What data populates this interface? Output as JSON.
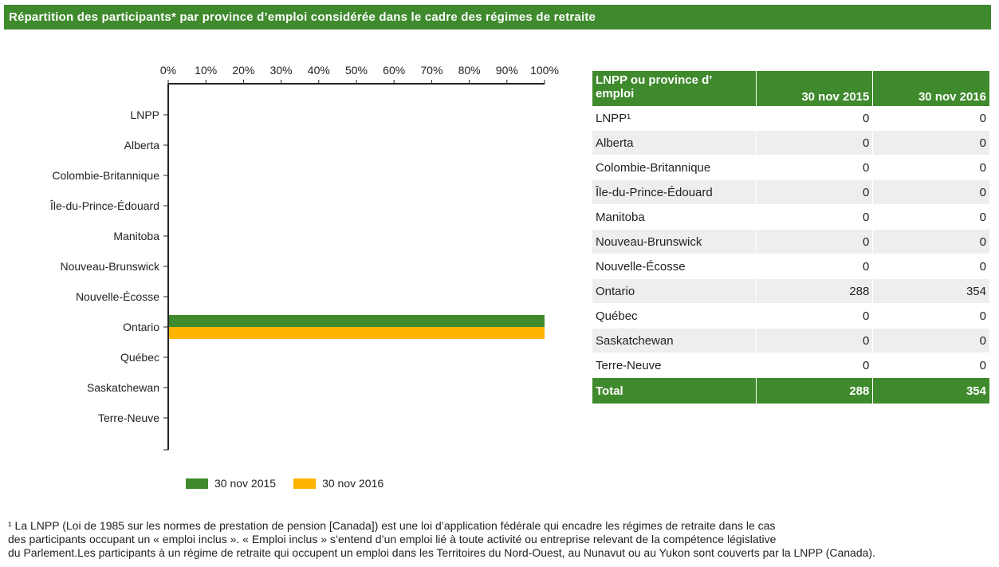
{
  "title": "Répartition des participants* par province d’emploi considérée dans le cadre des régimes de retraite",
  "colors": {
    "series_2015": "#3f8a2d",
    "series_2016": "#ffb400",
    "header_bg": "#3f8a2d"
  },
  "chart_data": {
    "type": "bar",
    "orientation": "horizontal",
    "categories": [
      "LNPP",
      "Alberta",
      "Colombie-Britannique",
      "Île-du-Prince-Édouard",
      "Manitoba",
      "Nouveau-Brunswick",
      "Nouvelle-Écosse",
      "Ontario",
      "Québec",
      "Saskatchewan",
      "Terre-Neuve"
    ],
    "series": [
      {
        "name": "30 nov 2015",
        "values": [
          0,
          0,
          0,
          0,
          0,
          0,
          0,
          100,
          0,
          0,
          0
        ]
      },
      {
        "name": "30 nov 2016",
        "values": [
          0,
          0,
          0,
          0,
          0,
          0,
          0,
          100,
          0,
          0,
          0
        ]
      }
    ],
    "xlim": [
      0,
      100
    ],
    "x_ticks": [
      "0%",
      "10%",
      "20%",
      "30%",
      "40%",
      "50%",
      "60%",
      "70%",
      "80%",
      "90%",
      "100%"
    ],
    "axis_position": "top",
    "grid": false,
    "legend_position": "bottom"
  },
  "table": {
    "headers": [
      "LNPP ou province d’ emploi",
      "30 nov 2015",
      "30 nov 2016"
    ],
    "rows": [
      [
        "LNPP¹",
        "0",
        "0"
      ],
      [
        "Alberta",
        "0",
        "0"
      ],
      [
        "Colombie-Britannique",
        "0",
        "0"
      ],
      [
        "Île-du-Prince-Édouard",
        "0",
        "0"
      ],
      [
        "Manitoba",
        "0",
        "0"
      ],
      [
        "Nouveau-Brunswick",
        "0",
        "0"
      ],
      [
        "Nouvelle-Écosse",
        "0",
        "0"
      ],
      [
        "Ontario",
        "288",
        "354"
      ],
      [
        "Québec",
        "0",
        "0"
      ],
      [
        "Saskatchewan",
        "0",
        "0"
      ],
      [
        "Terre-Neuve",
        "0",
        "0"
      ]
    ],
    "total": [
      "Total",
      "288",
      "354"
    ]
  },
  "footnote": "¹ La LNPP (Loi de 1985 sur les normes de prestation de pension [Canada]) est une loi d’application fédérale qui encadre les régimes de retraite dans le cas\ndes participants occupant un « emploi inclus ». « Emploi inclus » s’entend d’un emploi lié à toute activité ou entreprise relevant de la compétence législative\ndu Parlement.Les participants à un régime de retraite qui occupent un emploi dans les Territoires du Nord-Ouest, au Nunavut ou au Yukon sont couverts par la LNPP (Canada)."
}
